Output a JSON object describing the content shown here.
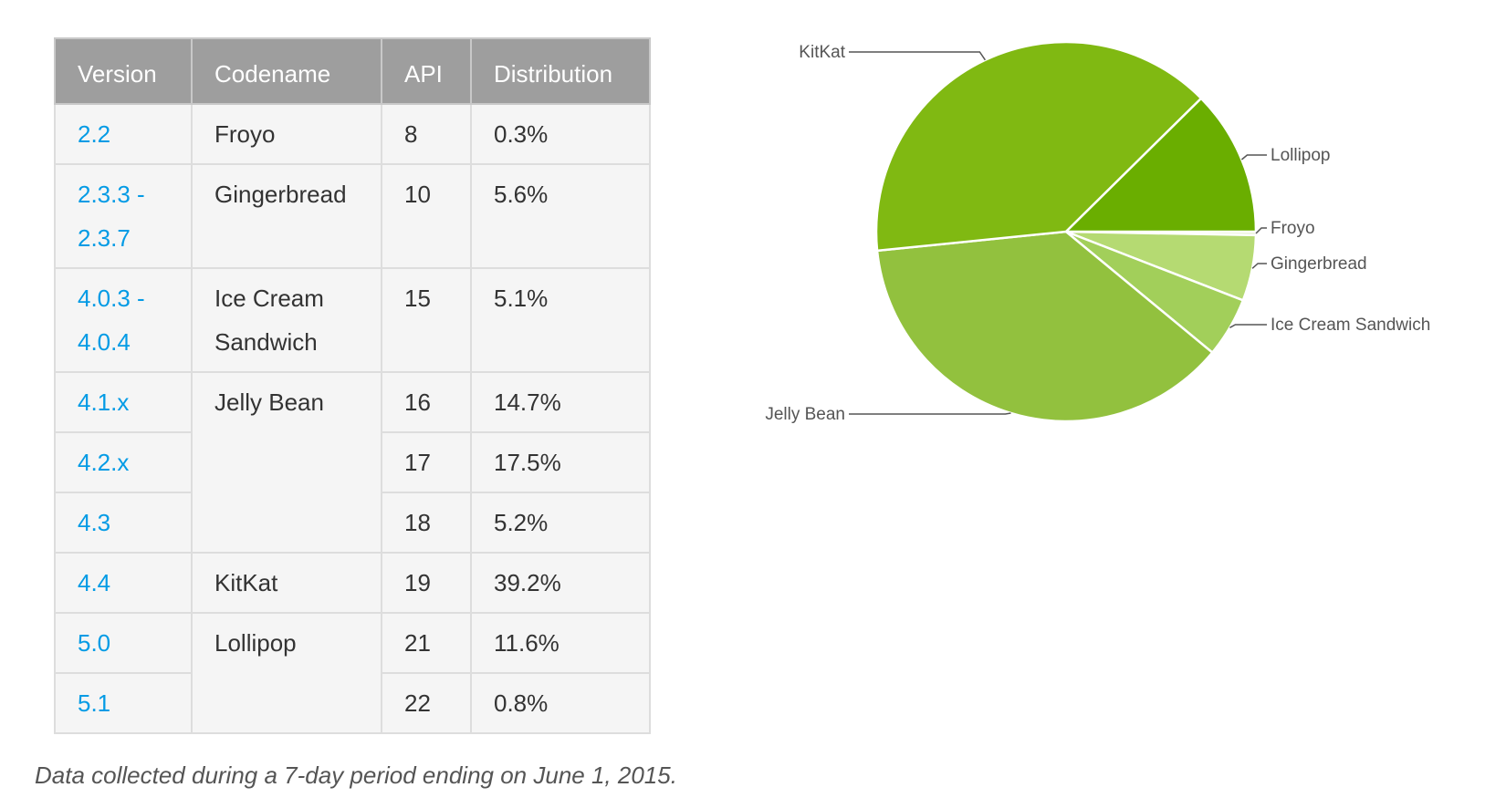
{
  "table": {
    "headers": {
      "version": "Version",
      "codename": "Codename",
      "api": "API",
      "distribution": "Distribution"
    },
    "rows": [
      {
        "version": "2.2",
        "codename": "Froyo",
        "api": "8",
        "distribution": "0.3%"
      },
      {
        "version_lines": [
          "2.3.3 -",
          "2.3.7"
        ],
        "codename": "Gingerbread",
        "api": "10",
        "distribution": "5.6%"
      },
      {
        "version_lines": [
          "4.0.3 -",
          "4.0.4"
        ],
        "codename_lines": [
          "Ice Cream",
          "Sandwich"
        ],
        "api": "15",
        "distribution": "5.1%"
      },
      {
        "version": "4.1.x",
        "codename": "Jelly Bean",
        "api": "16",
        "distribution": "14.7%"
      },
      {
        "version": "4.2.x",
        "api": "17",
        "distribution": "17.5%"
      },
      {
        "version": "4.3",
        "api": "18",
        "distribution": "5.2%"
      },
      {
        "version": "4.4",
        "codename": "KitKat",
        "api": "19",
        "distribution": "39.2%"
      },
      {
        "version": "5.0",
        "codename": "Lollipop",
        "api": "21",
        "distribution": "11.6%"
      },
      {
        "version": "5.1",
        "api": "22",
        "distribution": "0.8%"
      }
    ]
  },
  "footnote": "Data collected during a 7-day period ending on June 1, 2015.",
  "chart_data": {
    "type": "pie",
    "title": "",
    "slices": [
      {
        "label": "Froyo",
        "value": 0.3,
        "color": "#e5f1ce"
      },
      {
        "label": "Gingerbread",
        "value": 5.6,
        "color": "#b5da72"
      },
      {
        "label": "Ice Cream Sandwich",
        "value": 5.1,
        "color": "#a2cf5a"
      },
      {
        "label": "Jelly Bean",
        "value": 37.4,
        "color": "#92c13e"
      },
      {
        "label": "KitKat",
        "value": 39.2,
        "color": "#80b912"
      },
      {
        "label": "Lollipop",
        "value": 12.4,
        "color": "#6aae00"
      }
    ],
    "legend": "none"
  },
  "colors": {
    "header_bg": "#9e9e9e",
    "cell_bg": "#f5f5f5",
    "version_link": "#039be5",
    "text": "#333333"
  }
}
